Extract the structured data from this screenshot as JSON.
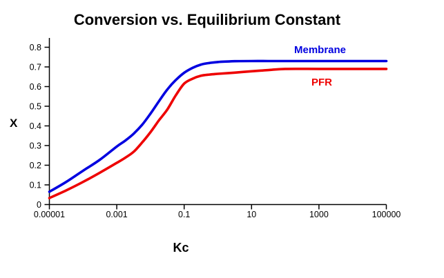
{
  "chart": {
    "title": "Conversion vs. Equilibrium Constant",
    "xlabel": "Kc",
    "ylabel": "X",
    "series_labels": {
      "membrane": "Membrane",
      "pfr": "PFR"
    }
  },
  "colors": {
    "membrane": "#0000E0",
    "pfr": "#EE0000",
    "axis": "#000000",
    "text": "#000000",
    "background": "#FFFFFF"
  },
  "chart_data": {
    "type": "line",
    "title": "Conversion vs. Equilibrium Constant",
    "xlabel": "Kc",
    "ylabel": "X",
    "x_scale": "log",
    "xlim": [
      1e-05,
      100000
    ],
    "ylim": [
      0,
      0.8
    ],
    "grid": false,
    "legend": "inline-labels",
    "x_tick_values": [
      1e-05,
      0.001,
      0.1,
      10,
      1000,
      100000
    ],
    "x_tick_labels": [
      "0.00001",
      "0.001",
      "0.1",
      "10",
      "1000",
      "100000"
    ],
    "y_tick_values": [
      0,
      0.1,
      0.2,
      0.3,
      0.4,
      0.5,
      0.6,
      0.7,
      0.8
    ],
    "y_tick_labels": [
      "0",
      "0.1",
      "0.2",
      "0.3",
      "0.4",
      "0.5",
      "0.6",
      "0.7",
      "0.8"
    ],
    "x": [
      1e-05,
      3.16e-05,
      0.0001,
      0.000316,
      0.001,
      0.00178,
      0.00316,
      0.00562,
      0.01,
      0.0178,
      0.0316,
      0.0562,
      0.1,
      0.178,
      0.316,
      0.562,
      1,
      3.16,
      10,
      31.6,
      100,
      1000,
      10000,
      100000
    ],
    "series": [
      {
        "name": "Membrane",
        "color": "#0000E0",
        "values": [
          0.065,
          0.115,
          0.172,
          0.228,
          0.295,
          0.325,
          0.36,
          0.405,
          0.462,
          0.525,
          0.585,
          0.633,
          0.67,
          0.695,
          0.712,
          0.72,
          0.725,
          0.729,
          0.73,
          0.73,
          0.73,
          0.73,
          0.73,
          0.73
        ]
      },
      {
        "name": "PFR",
        "color": "#EE0000",
        "values": [
          0.033,
          0.072,
          0.115,
          0.162,
          0.212,
          0.238,
          0.268,
          0.315,
          0.368,
          0.428,
          0.483,
          0.555,
          0.615,
          0.64,
          0.655,
          0.661,
          0.665,
          0.671,
          0.678,
          0.684,
          0.69,
          0.69,
          0.69,
          0.69
        ]
      }
    ]
  }
}
